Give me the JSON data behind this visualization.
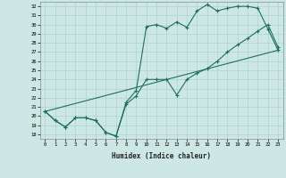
{
  "title": "",
  "xlabel": "Humidex (Indice chaleur)",
  "bg_color": "#cde8e4",
  "grid_color": "#aad4cc",
  "line_color": "#1e6e60",
  "xlim": [
    -0.5,
    23.5
  ],
  "ylim": [
    17.5,
    32.5
  ],
  "xticks": [
    0,
    1,
    2,
    3,
    4,
    5,
    6,
    7,
    8,
    9,
    10,
    11,
    12,
    13,
    14,
    15,
    16,
    17,
    18,
    19,
    20,
    21,
    22,
    23
  ],
  "yticks": [
    18,
    19,
    20,
    21,
    22,
    23,
    24,
    25,
    26,
    27,
    28,
    29,
    30,
    31,
    32
  ],
  "line1_x": [
    0,
    1,
    2,
    3,
    4,
    5,
    6,
    7,
    8,
    9,
    10,
    11,
    12,
    13,
    14,
    15,
    16,
    17,
    18,
    19,
    20,
    21,
    22,
    23
  ],
  "line1_y": [
    20.5,
    19.5,
    18.8,
    19.8,
    19.8,
    19.5,
    18.2,
    17.8,
    21.5,
    22.8,
    29.8,
    30.0,
    29.6,
    30.3,
    29.7,
    31.5,
    32.2,
    31.5,
    31.8,
    32.0,
    32.0,
    31.8,
    29.5,
    27.2
  ],
  "line2_x": [
    0,
    1,
    2,
    3,
    4,
    5,
    6,
    7,
    8,
    9,
    10,
    11,
    12,
    13,
    14,
    15,
    16,
    17,
    18,
    19,
    20,
    21,
    22,
    23
  ],
  "line2_y": [
    20.5,
    19.5,
    18.8,
    19.8,
    19.8,
    19.5,
    18.2,
    17.8,
    21.3,
    22.2,
    24.0,
    24.0,
    24.0,
    22.3,
    24.0,
    24.7,
    25.2,
    26.0,
    27.0,
    27.8,
    28.5,
    29.3,
    30.0,
    27.5
  ],
  "line3_x": [
    0,
    23
  ],
  "line3_y": [
    20.5,
    27.2
  ]
}
